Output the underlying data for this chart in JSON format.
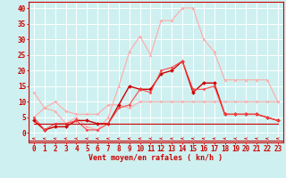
{
  "xlabel": "Vent moyen/en rafales ( kn/h )",
  "background_color": "#cff0f0",
  "grid_color": "#ffffff",
  "x_ticks": [
    0,
    1,
    2,
    3,
    4,
    5,
    6,
    7,
    8,
    9,
    10,
    11,
    12,
    13,
    14,
    15,
    16,
    17,
    18,
    19,
    20,
    21,
    22,
    23
  ],
  "y_ticks": [
    0,
    5,
    10,
    15,
    20,
    25,
    30,
    35,
    40
  ],
  "ylim": [
    -3,
    42
  ],
  "xlim": [
    -0.5,
    23.5
  ],
  "series": [
    {
      "x": [
        0,
        1,
        2,
        3,
        4,
        5,
        6,
        7,
        8,
        9,
        10,
        11,
        12,
        13,
        14,
        15,
        16,
        17,
        18,
        19,
        20,
        21,
        22,
        23
      ],
      "y": [
        13,
        8,
        10,
        7,
        6,
        6,
        6,
        9,
        9,
        8,
        10,
        10,
        10,
        10,
        10,
        10,
        10,
        10,
        10,
        10,
        10,
        10,
        10,
        10
      ],
      "color": "#ffaaaa",
      "marker": "D",
      "markersize": 1.5,
      "linewidth": 0.8
    },
    {
      "x": [
        0,
        1,
        2,
        3,
        4,
        5,
        6,
        7,
        8,
        9,
        10,
        11,
        12,
        13,
        14,
        15,
        16,
        17,
        18,
        19,
        20,
        21,
        22,
        23
      ],
      "y": [
        5,
        8,
        7,
        3,
        5,
        2,
        1,
        5,
        15,
        26,
        31,
        25,
        36,
        36,
        40,
        40,
        30,
        26,
        17,
        17,
        17,
        17,
        17,
        10
      ],
      "color": "#ffaaaa",
      "marker": "^",
      "markersize": 2.0,
      "linewidth": 0.8
    },
    {
      "x": [
        0,
        1,
        2,
        3,
        4,
        5,
        6,
        7,
        8,
        9,
        10,
        11,
        12,
        13,
        14,
        15,
        16,
        17,
        18,
        19,
        20,
        21,
        22,
        23
      ],
      "y": [
        4,
        1,
        2,
        2,
        4,
        4,
        3,
        3,
        9,
        15,
        14,
        14,
        19,
        20,
        23,
        13,
        16,
        16,
        6,
        6,
        6,
        6,
        5,
        4
      ],
      "color": "#cc0000",
      "marker": "D",
      "markersize": 2.0,
      "linewidth": 1.0
    },
    {
      "x": [
        0,
        1,
        2,
        3,
        4,
        5,
        6,
        7,
        8,
        9,
        10,
        11,
        12,
        13,
        14,
        15,
        16,
        17,
        18,
        19,
        20,
        21,
        22,
        23
      ],
      "y": [
        5,
        1,
        3,
        3,
        4,
        1,
        1,
        3,
        8,
        9,
        14,
        13,
        20,
        21,
        23,
        14,
        14,
        15,
        6,
        6,
        6,
        6,
        5,
        4
      ],
      "color": "#ff4444",
      "marker": "D",
      "markersize": 1.5,
      "linewidth": 0.8
    },
    {
      "x": [
        0,
        1,
        2,
        3,
        4,
        5,
        6,
        7,
        8,
        9,
        10,
        11,
        12,
        13,
        14,
        15,
        16,
        17,
        18,
        19,
        20,
        21,
        22,
        23
      ],
      "y": [
        3,
        3,
        3,
        3,
        3,
        3,
        3,
        3,
        3,
        3,
        3,
        3,
        3,
        3,
        3,
        3,
        3,
        3,
        3,
        3,
        3,
        3,
        3,
        3
      ],
      "color": "#cc0000",
      "marker": null,
      "markersize": 0,
      "linewidth": 0.8
    }
  ],
  "axis_label_fontsize": 6,
  "tick_fontsize": 5.5
}
